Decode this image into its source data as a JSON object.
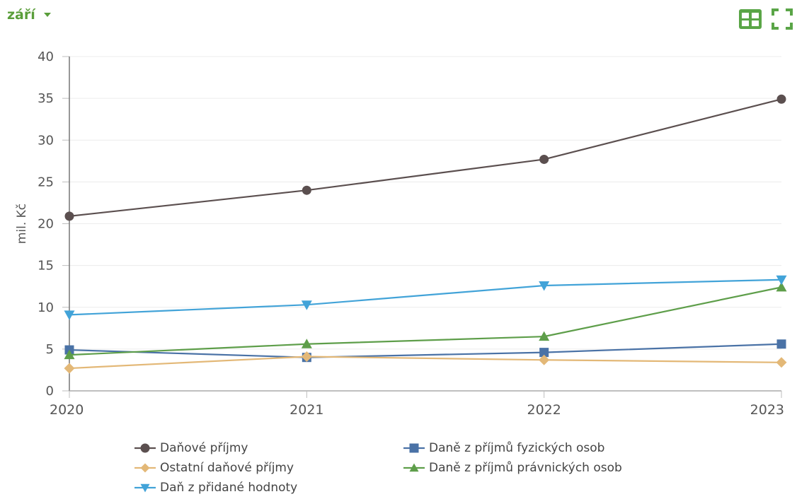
{
  "toolbar": {
    "month": "září",
    "table_icon": "table-grid-icon",
    "fullscreen_icon": "fullscreen-icon"
  },
  "chart_data": {
    "type": "line",
    "categories": [
      "2020",
      "2021",
      "2022",
      "2023"
    ],
    "title": "",
    "xlabel": "",
    "ylabel": "mil. Kč",
    "ylim": [
      0,
      40
    ],
    "yticks": [
      0,
      5,
      10,
      15,
      20,
      25,
      30,
      35,
      40
    ],
    "grid": true,
    "legend_position": "bottom",
    "series": [
      {
        "name": "Daňové příjmy",
        "values": [
          20.9,
          24.0,
          27.7,
          34.9
        ],
        "color": "#5b4f4f",
        "marker": "circle"
      },
      {
        "name": "Daně z příjmů fyzických osob",
        "values": [
          4.9,
          4.0,
          4.6,
          5.6
        ],
        "color": "#4a72a6",
        "marker": "square"
      },
      {
        "name": "Ostatní daňové příjmy",
        "values": [
          2.7,
          4.1,
          3.7,
          3.4
        ],
        "color": "#e3b877",
        "marker": "diamond"
      },
      {
        "name": "Daně z příjmů právnických osob",
        "values": [
          4.3,
          5.6,
          6.5,
          12.4
        ],
        "color": "#5e9e4a",
        "marker": "triangle-up"
      },
      {
        "name": "Daň z přidané hodnoty",
        "values": [
          9.1,
          10.3,
          12.6,
          13.3
        ],
        "color": "#42a3d8",
        "marker": "triangle-down"
      }
    ]
  }
}
